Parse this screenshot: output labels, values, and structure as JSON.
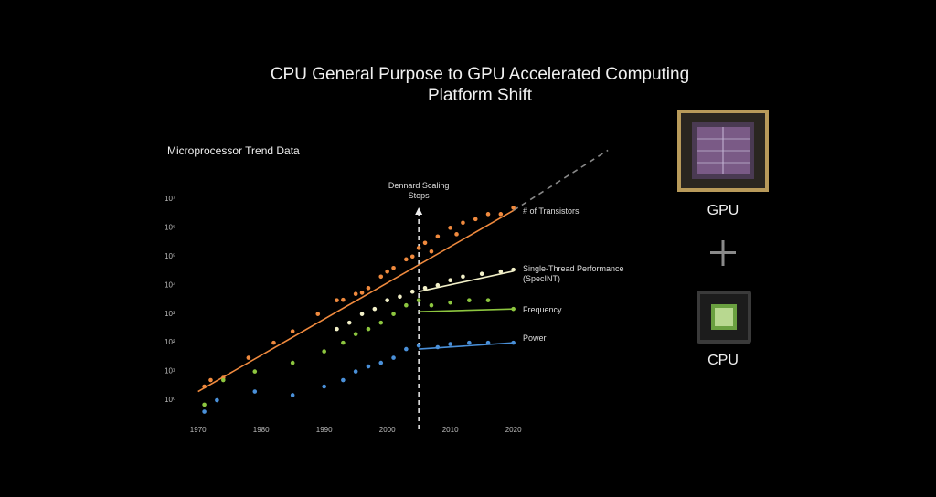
{
  "chart_data": {
    "type": "scatter",
    "title": "CPU General Purpose to GPU Accelerated Computing Platform Shift",
    "subtitle": "Microprocessor Trend Data",
    "annotation": "Dennard Scaling Stops",
    "annotation_x": 2005,
    "log_scale": true,
    "xlim": [
      1967,
      2036
    ],
    "xticks": [
      1970,
      1980,
      1990,
      2000,
      2010,
      2020
    ],
    "ylim": [
      0.2,
      1000000000
    ],
    "yticks": [
      {
        "value": 1,
        "label": "10⁰"
      },
      {
        "value": 10,
        "label": "10¹"
      },
      {
        "value": 100,
        "label": "10²"
      },
      {
        "value": 1000,
        "label": "10³"
      },
      {
        "value": 10000,
        "label": "10⁴"
      },
      {
        "value": 100000,
        "label": "10⁵"
      },
      {
        "value": 1000000,
        "label": "10⁶"
      },
      {
        "value": 10000000,
        "label": "10⁷"
      }
    ],
    "series": [
      {
        "name": "# of Transistors",
        "color": "#f08a3e",
        "x": [
          1971,
          1972,
          1974,
          1978,
          1982,
          1985,
          1989,
          1992,
          1993,
          1995,
          1996,
          1997,
          1999,
          2000,
          2001,
          2003,
          2004,
          2005,
          2006,
          2007,
          2008,
          2010,
          2011,
          2012,
          2014,
          2016,
          2018,
          2020
        ],
        "values": [
          3,
          5,
          6,
          30,
          100,
          250,
          1000,
          3000,
          3100,
          5000,
          5500,
          8000,
          20000,
          30000,
          40000,
          80000,
          100000,
          200000,
          300000,
          150000,
          500000,
          1000000,
          600000,
          1500000,
          2000000,
          3000000,
          3000000,
          5000000
        ],
        "trend": {
          "x": [
            1970,
            2020
          ],
          "values": [
            2,
            4000000
          ]
        },
        "projection": {
          "x": [
            2020,
            2035
          ],
          "values": [
            4000000,
            500000000
          ]
        }
      },
      {
        "name": "Single-Thread Performance (SpecINT)",
        "color": "#f2f0c8",
        "x": [
          1992,
          1994,
          1996,
          1998,
          2000,
          2002,
          2004,
          2006,
          2008,
          2010,
          2012,
          2015,
          2018,
          2020
        ],
        "values": [
          300,
          500,
          1000,
          1500,
          3000,
          4000,
          6000,
          8000,
          10000,
          15000,
          20000,
          25000,
          30000,
          35000
        ],
        "trend": {
          "x": [
            2005,
            2020
          ],
          "values": [
            6000,
            31000
          ]
        }
      },
      {
        "name": "Frequency",
        "color": "#8dc63f",
        "x": [
          1971,
          1974,
          1979,
          1985,
          1990,
          1993,
          1995,
          1997,
          1999,
          2001,
          2003,
          2005,
          2007,
          2010,
          2013,
          2016,
          2020
        ],
        "values": [
          0.7,
          5,
          10,
          20,
          50,
          100,
          200,
          300,
          500,
          1000,
          2000,
          3000,
          2000,
          2500,
          3000,
          3000,
          1500
        ],
        "trend": {
          "x": [
            2005,
            2020
          ],
          "values": [
            1200,
            1500
          ]
        }
      },
      {
        "name": "Power",
        "color": "#4a90d9",
        "x": [
          1971,
          1973,
          1979,
          1985,
          1990,
          1993,
          1995,
          1997,
          1999,
          2001,
          2003,
          2005,
          2008,
          2010,
          2013,
          2016,
          2020
        ],
        "values": [
          0.4,
          1,
          2,
          1.5,
          3,
          5,
          10,
          15,
          20,
          30,
          60,
          80,
          70,
          90,
          100,
          100,
          100
        ],
        "trend": {
          "x": [
            2005,
            2020
          ],
          "values": [
            60,
            100
          ]
        }
      }
    ]
  },
  "side": {
    "gpu_label": "GPU",
    "cpu_label": "CPU"
  }
}
